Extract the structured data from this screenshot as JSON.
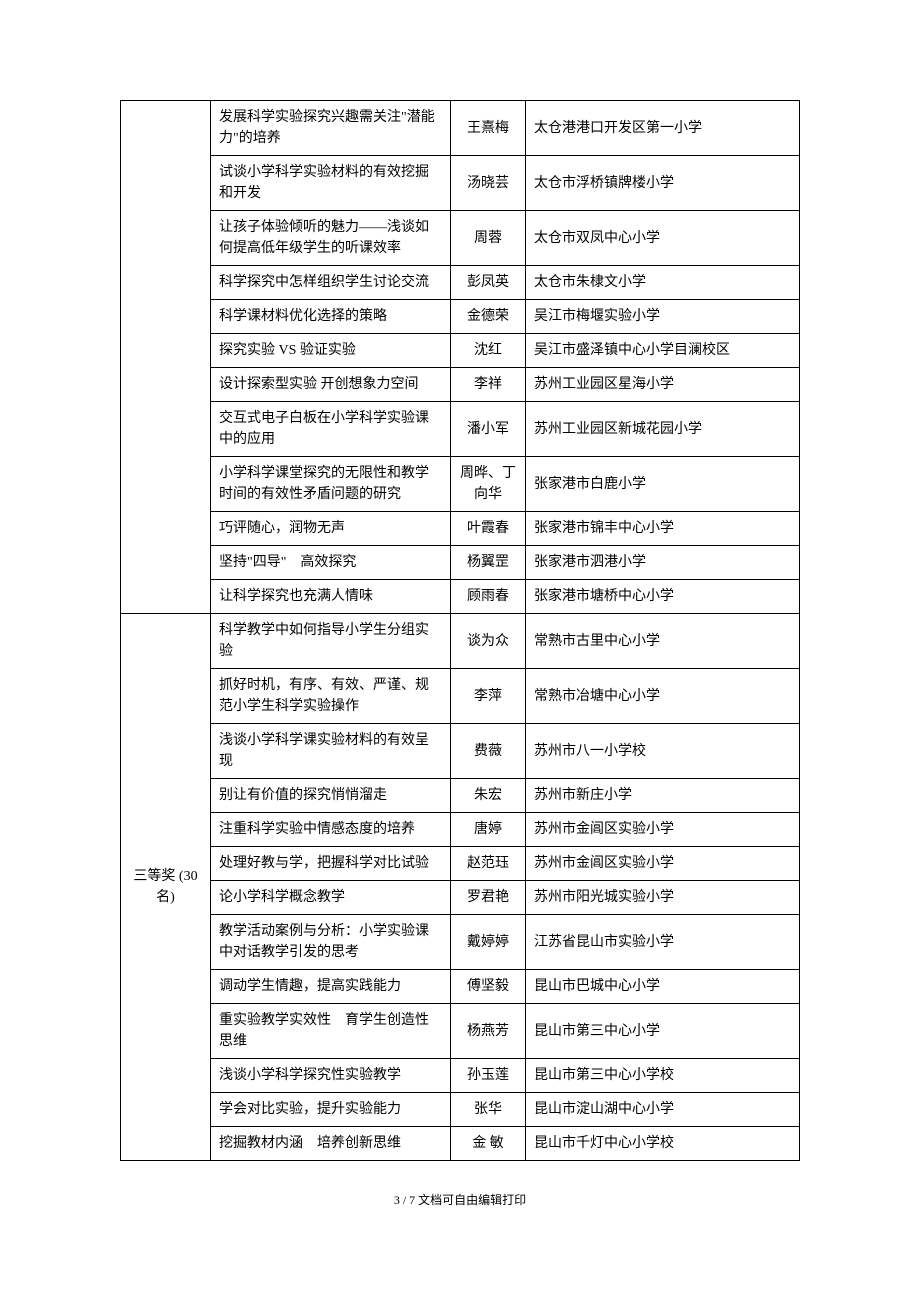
{
  "table": {
    "group1": {
      "rows": [
        {
          "title": "发展科学实验探究兴趣需关注\"潜能力\"的培养",
          "author": "王熹梅",
          "school": "太仓港港口开发区第一小学"
        },
        {
          "title": "试谈小学科学实验材料的有效挖掘和开发",
          "author": "汤晓芸",
          "school": "太仓市浮桥镇牌楼小学"
        },
        {
          "title": "让孩子体验倾听的魅力——浅谈如何提高低年级学生的听课效率",
          "author": "周蓉",
          "school": "太仓市双凤中心小学"
        },
        {
          "title": "科学探究中怎样组织学生讨论交流",
          "author": "彭凤英",
          "school": "太仓市朱棣文小学"
        },
        {
          "title": "科学课材料优化选择的策略",
          "author": "金德荣",
          "school": "吴江市梅堰实验小学"
        },
        {
          "title": "探究实验 VS 验证实验",
          "author": "沈红",
          "school": "吴江市盛泽镇中心小学目澜校区"
        },
        {
          "title": "设计探索型实验 开创想象力空间",
          "author": "李祥",
          "school": "苏州工业园区星海小学"
        },
        {
          "title": "交互式电子白板在小学科学实验课中的应用",
          "author": "潘小军",
          "school": "苏州工业园区新城花园小学"
        },
        {
          "title": "小学科学课堂探究的无限性和教学时间的有效性矛盾问题的研究",
          "author": "周晔、丁向华",
          "school": "张家港市白鹿小学"
        },
        {
          "title": "巧评随心，润物无声",
          "author": "叶霞春",
          "school": "张家港市锦丰中心小学"
        },
        {
          "title": "坚持\"四导\"　高效探究",
          "author": "杨翼罡",
          "school": "张家港市泗港小学"
        },
        {
          "title": "让科学探究也充满人情味",
          "author": "顾雨春",
          "school": "张家港市塘桥中心小学"
        }
      ]
    },
    "group2": {
      "category": "三等奖 (30 名)",
      "rows": [
        {
          "title": "科学教学中如何指导小学生分组实验",
          "author": "谈为众",
          "school": "常熟市古里中心小学"
        },
        {
          "title": "抓好时机，有序、有效、严谨、规范小学生科学实验操作",
          "author": "李萍",
          "school": "常熟市冶塘中心小学"
        },
        {
          "title": "浅谈小学科学课实验材料的有效呈现",
          "author": "费薇",
          "school": "苏州市八一小学校"
        },
        {
          "title": "别让有价值的探究悄悄溜走",
          "author": "朱宏",
          "school": "苏州市新庄小学"
        },
        {
          "title": "注重科学实验中情感态度的培养",
          "author": "唐婷",
          "school": "苏州市金阊区实验小学"
        },
        {
          "title": "处理好教与学，把握科学对比试验",
          "author": "赵范珏",
          "school": "苏州市金阊区实验小学"
        },
        {
          "title": "论小学科学概念教学",
          "author": "罗君艳",
          "school": "苏州市阳光城实验小学"
        },
        {
          "title": "教学活动案例与分析：小学实验课中对话教学引发的思考",
          "author": "戴婷婷",
          "school": "江苏省昆山市实验小学"
        },
        {
          "title": "调动学生情趣，提高实践能力",
          "author": "傅坚毅",
          "school": "昆山市巴城中心小学"
        },
        {
          "title": "重实验教学实效性　育学生创造性思维",
          "author": "杨燕芳",
          "school": "昆山市第三中心小学"
        },
        {
          "title": "浅谈小学科学探究性实验教学",
          "author": "孙玉莲",
          "school": "昆山市第三中心小学校"
        },
        {
          "title": "学会对比实验，提升实验能力",
          "author": "张华",
          "school": "昆山市淀山湖中心小学"
        },
        {
          "title": "挖掘教材内涵　培养创新思维",
          "author": "金 敏",
          "school": "昆山市千灯中心小学校"
        }
      ]
    }
  },
  "footer": {
    "page": "3 / 7",
    "note": "文档可自由编辑打印"
  }
}
